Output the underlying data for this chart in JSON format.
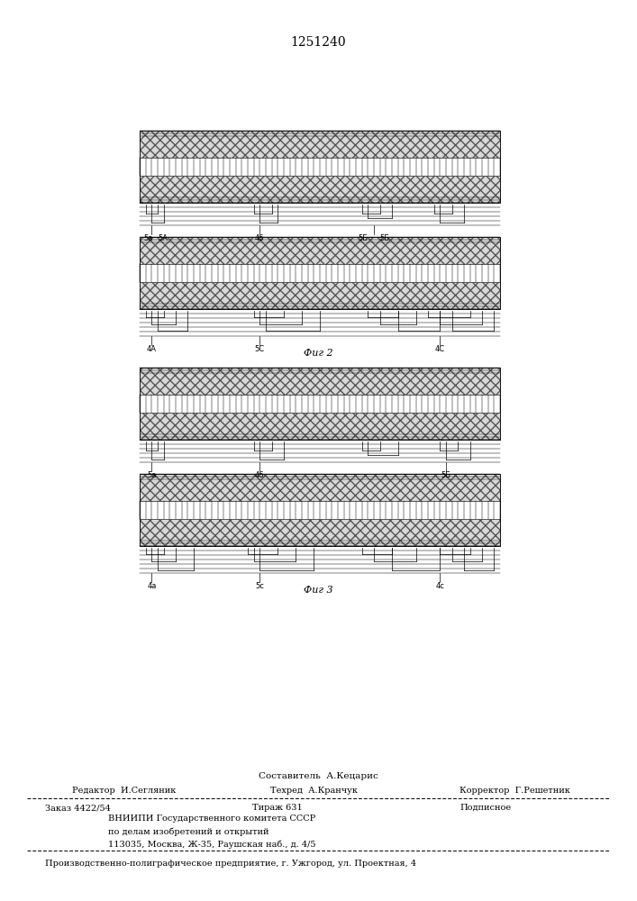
{
  "title": "1251240",
  "background_color": "#ffffff",
  "fig2_label": "Фиг 2",
  "fig3_label": "Фиг 3",
  "composer_line": "Составитель  А.Кецарис",
  "editor_line": "Редактор  И.Сегляник",
  "techred_line": "Техред  А.Кранчук",
  "corrector_line": "Корректор  Г.Решетник",
  "order_line": "Заказ 4422/54",
  "tirazh_line": "Тираж 631",
  "podpisnoe_line": "Подписное",
  "vniiipi_line1": "ВНИИПИ Государственного комитета СССР",
  "vniiipi_line2": "по делам изобретений и открытий",
  "vniiipi_line3": "113035, Москва, Ж-35, Раушская наб., д. 4/5",
  "production_line": "Производственно-полиграфическое предприятие, г. Ужгород, ул. Проектная, 4"
}
